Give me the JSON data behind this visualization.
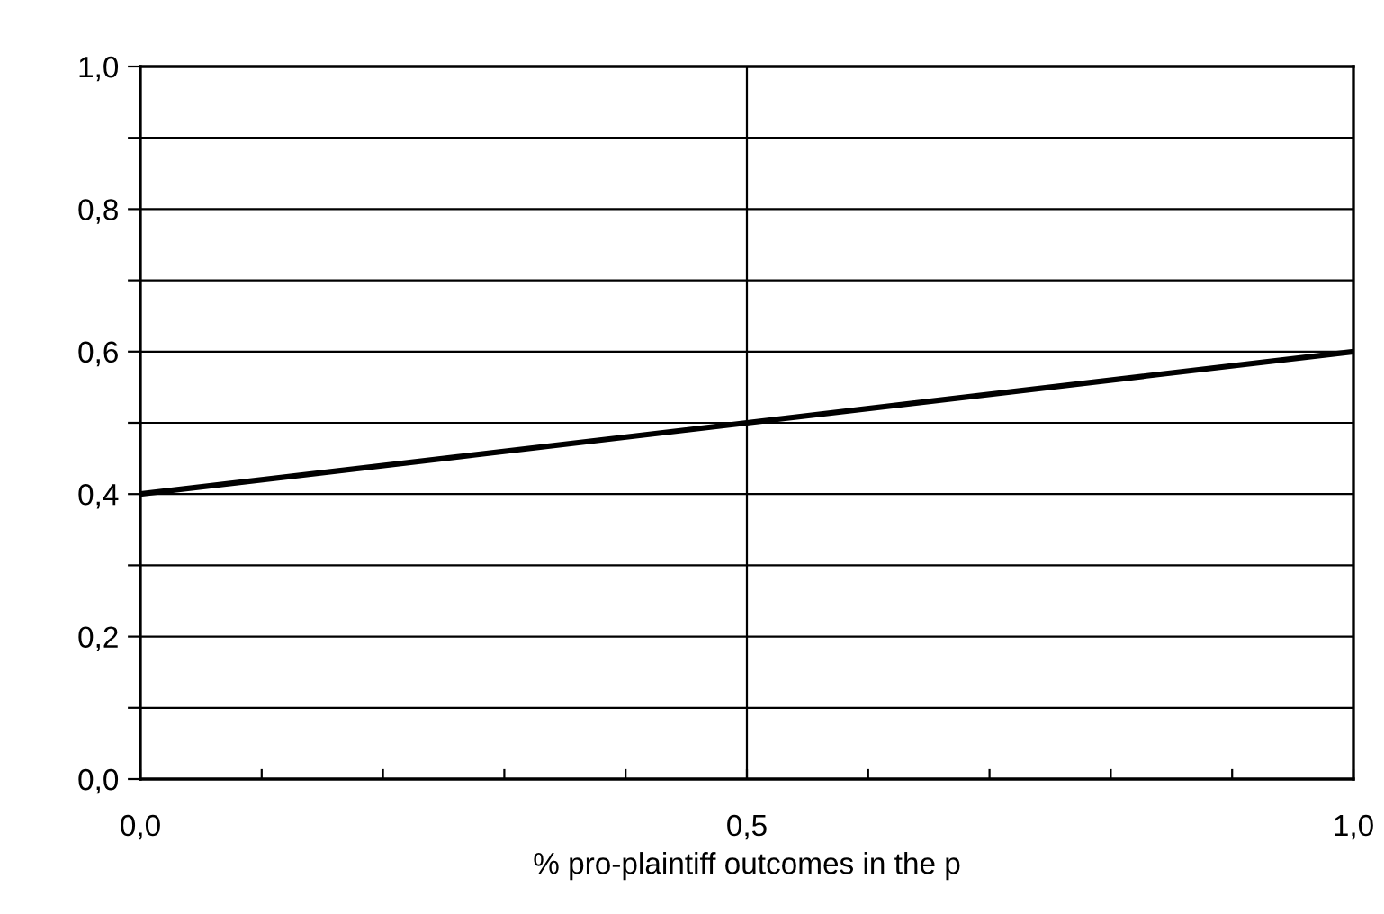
{
  "chart_data": {
    "type": "line",
    "xlabel": "% pro-plaintiff outcomes in the p",
    "x": [
      0.0,
      1.0
    ],
    "series": [
      {
        "color": "#000000",
        "values": [
          0.4,
          0.6
        ]
      }
    ],
    "xlim": [
      0,
      1
    ],
    "xticks": [
      {
        "value": 0,
        "label": "0,0"
      },
      {
        "value": 0.1,
        "label": null
      },
      {
        "value": 0.2,
        "label": null
      },
      {
        "value": 0.3,
        "label": null
      },
      {
        "value": 0.4,
        "label": null
      },
      {
        "value": 0.5,
        "label": "0,5"
      },
      {
        "value": 0.6,
        "label": null
      },
      {
        "value": 0.7,
        "label": null
      },
      {
        "value": 0.8,
        "label": null
      },
      {
        "value": 0.9,
        "label": null
      },
      {
        "value": 1,
        "label": "1,0"
      }
    ],
    "ylim": [
      0,
      1
    ],
    "yticks": [
      {
        "value": 0,
        "label": "0,0"
      },
      {
        "value": 0.1,
        "label": null
      },
      {
        "value": 0.2,
        "label": "0,2"
      },
      {
        "value": 0.3,
        "label": null
      },
      {
        "value": 0.4,
        "label": "0,4"
      },
      {
        "value": 0.5,
        "label": null
      },
      {
        "value": 0.6,
        "label": "0,6"
      },
      {
        "value": 0.7,
        "label": null
      },
      {
        "value": 0.8,
        "label": "0,8"
      },
      {
        "value": 0.9,
        "label": null
      },
      {
        "value": 1,
        "label": "1,0"
      }
    ],
    "grid": "y",
    "ref_lines": [
      {
        "axis": "x",
        "value": 0.5,
        "color": "#000000"
      }
    ],
    "line_style": "solid",
    "marker": "none"
  }
}
